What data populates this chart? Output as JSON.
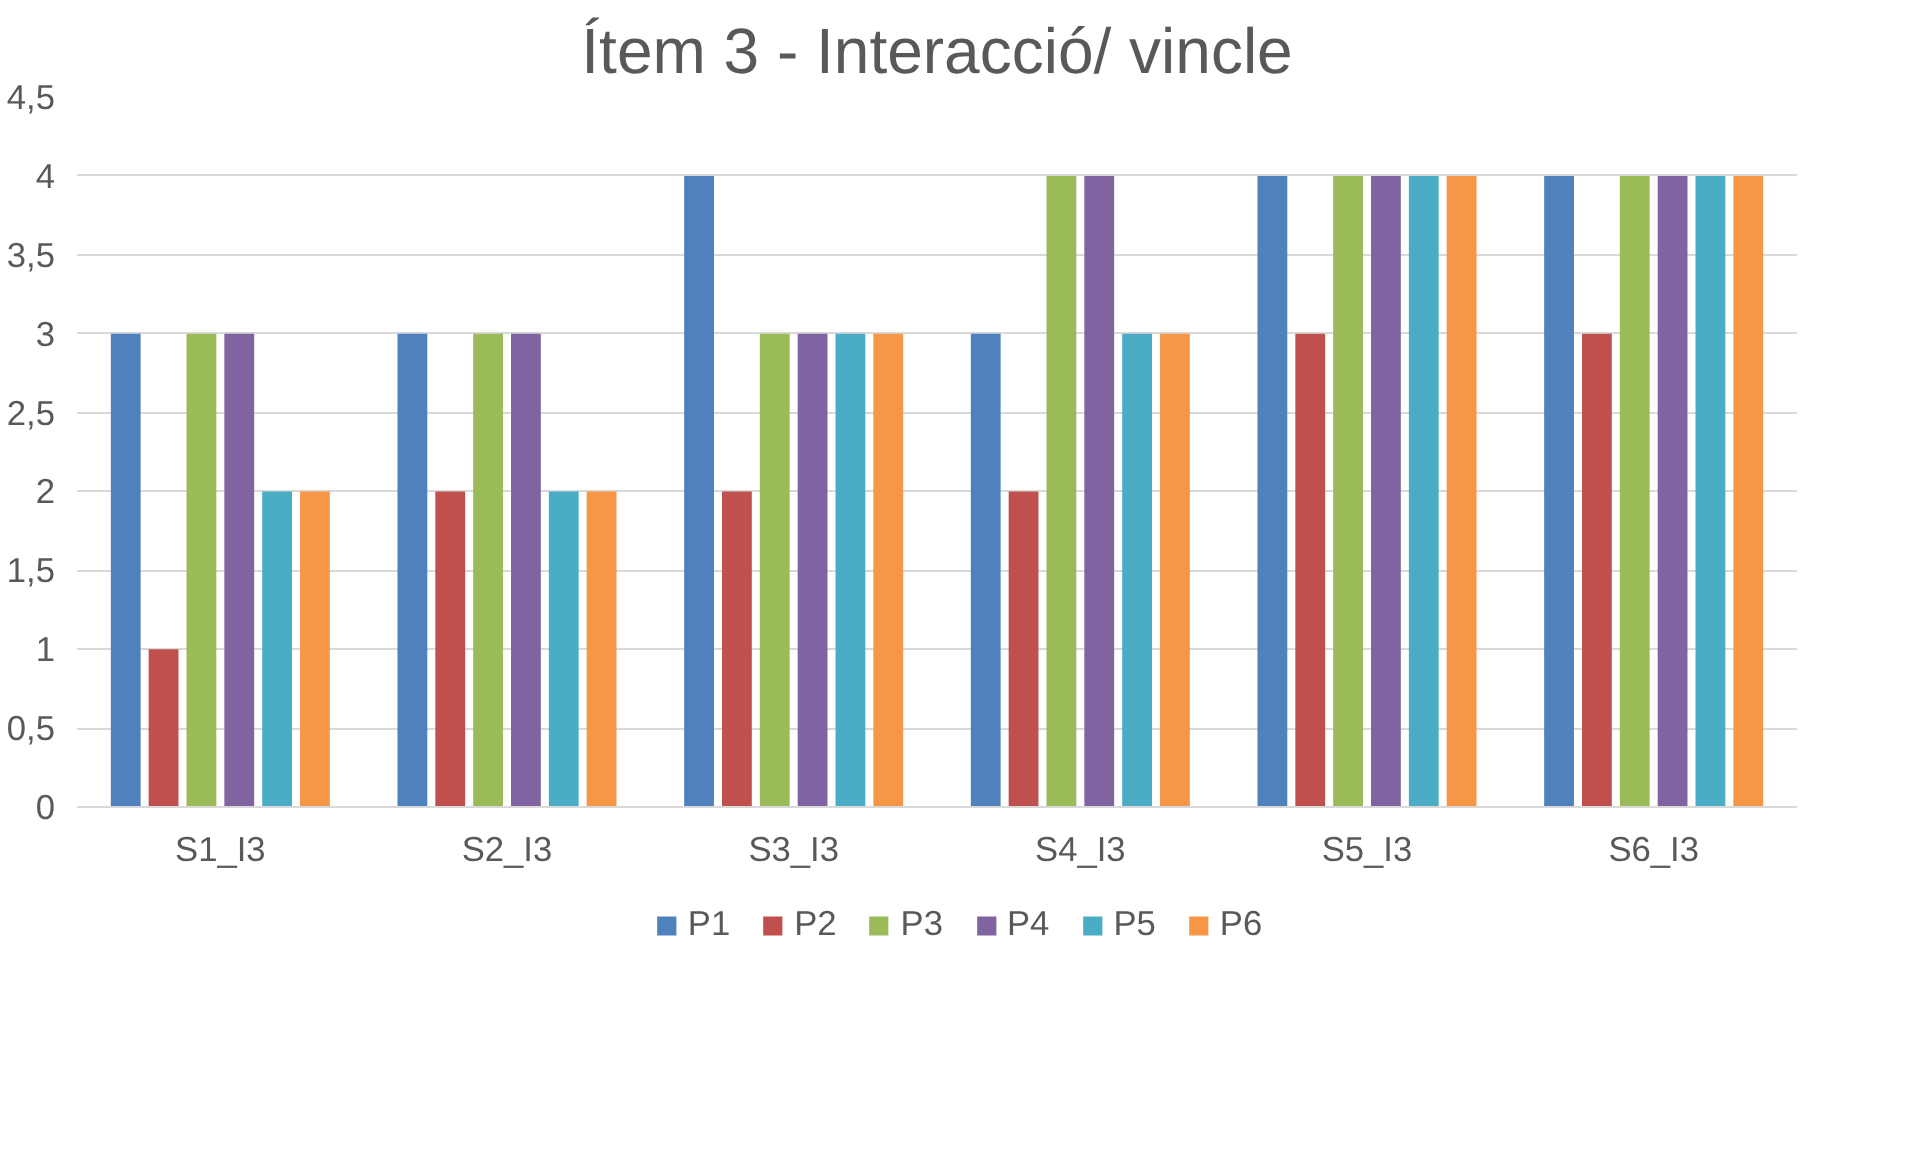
{
  "chart_data": {
    "type": "bar",
    "title": "Ítem 3 - Interacció/ vincle",
    "categories": [
      "S1_I3",
      "S2_I3",
      "S3_I3",
      "S4_I3",
      "S5_I3",
      "S6_I3"
    ],
    "series": [
      {
        "name": "P1",
        "color": "#4f81bd",
        "values": [
          3,
          3,
          4,
          3,
          4,
          4
        ]
      },
      {
        "name": "P2",
        "color": "#c0504d",
        "values": [
          1,
          2,
          2,
          2,
          3,
          3
        ]
      },
      {
        "name": "P3",
        "color": "#9bbb59",
        "values": [
          3,
          3,
          3,
          4,
          4,
          4
        ]
      },
      {
        "name": "P4",
        "color": "#8064a2",
        "values": [
          3,
          3,
          3,
          4,
          4,
          4
        ]
      },
      {
        "name": "P5",
        "color": "#4bacc6",
        "values": [
          2,
          2,
          3,
          3,
          4,
          4
        ]
      },
      {
        "name": "P6",
        "color": "#f79646",
        "values": [
          2,
          2,
          3,
          3,
          4,
          4
        ]
      }
    ],
    "ylim": [
      0,
      4.5
    ],
    "yticks": [
      0,
      {
        "value": 0.5,
        "label": "0,5"
      },
      1,
      {
        "value": 1.5,
        "label": "1,5"
      },
      2,
      {
        "value": 2.5,
        "label": "2,5"
      },
      3,
      {
        "value": 3.5,
        "label": "3,5"
      },
      4,
      {
        "value": 4.5,
        "label": "4,5"
      }
    ],
    "grid": "y",
    "legend": "bottom"
  }
}
